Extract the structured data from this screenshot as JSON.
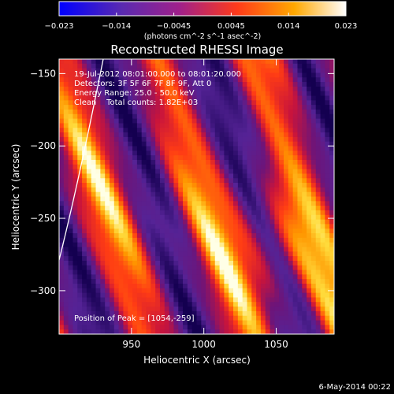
{
  "chart_data": {
    "type": "heatmap",
    "title": "Reconstructed RHESSI Image",
    "xlabel": "Heliocentric X (arcsec)",
    "ylabel": "Heliocentric Y (arcsec)",
    "xlim": [
      900,
      1090
    ],
    "ylim": [
      -330,
      -140
    ],
    "xticks": [
      950,
      1000,
      1050
    ],
    "yticks": [
      -150,
      -200,
      -250,
      -300
    ],
    "colorbar": {
      "min": -0.023,
      "max": 0.023,
      "tick_labels": [
        "-0.023",
        "-0.014",
        "-0.0045",
        "0.0045",
        "0.014",
        "0.023"
      ],
      "unit_text": "(photons cm^-2 s^-1 asec^-2)"
    },
    "info_lines": [
      "19-Jul-2012 08:01:00.000 to 08:01:20.000",
      "Detectors: 3F 5F 6F 7F 8F 9F, Att 0",
      "Energy Range: 25.0 - 50.0 keV",
      "Clean    Total counts: 1.82E+03"
    ],
    "peak_label": "Position of Peak = [1054,-259]",
    "peak_position": [
      1054,
      -259
    ],
    "limb_visible": true
  },
  "footer_date": "6-May-2014 00:22"
}
